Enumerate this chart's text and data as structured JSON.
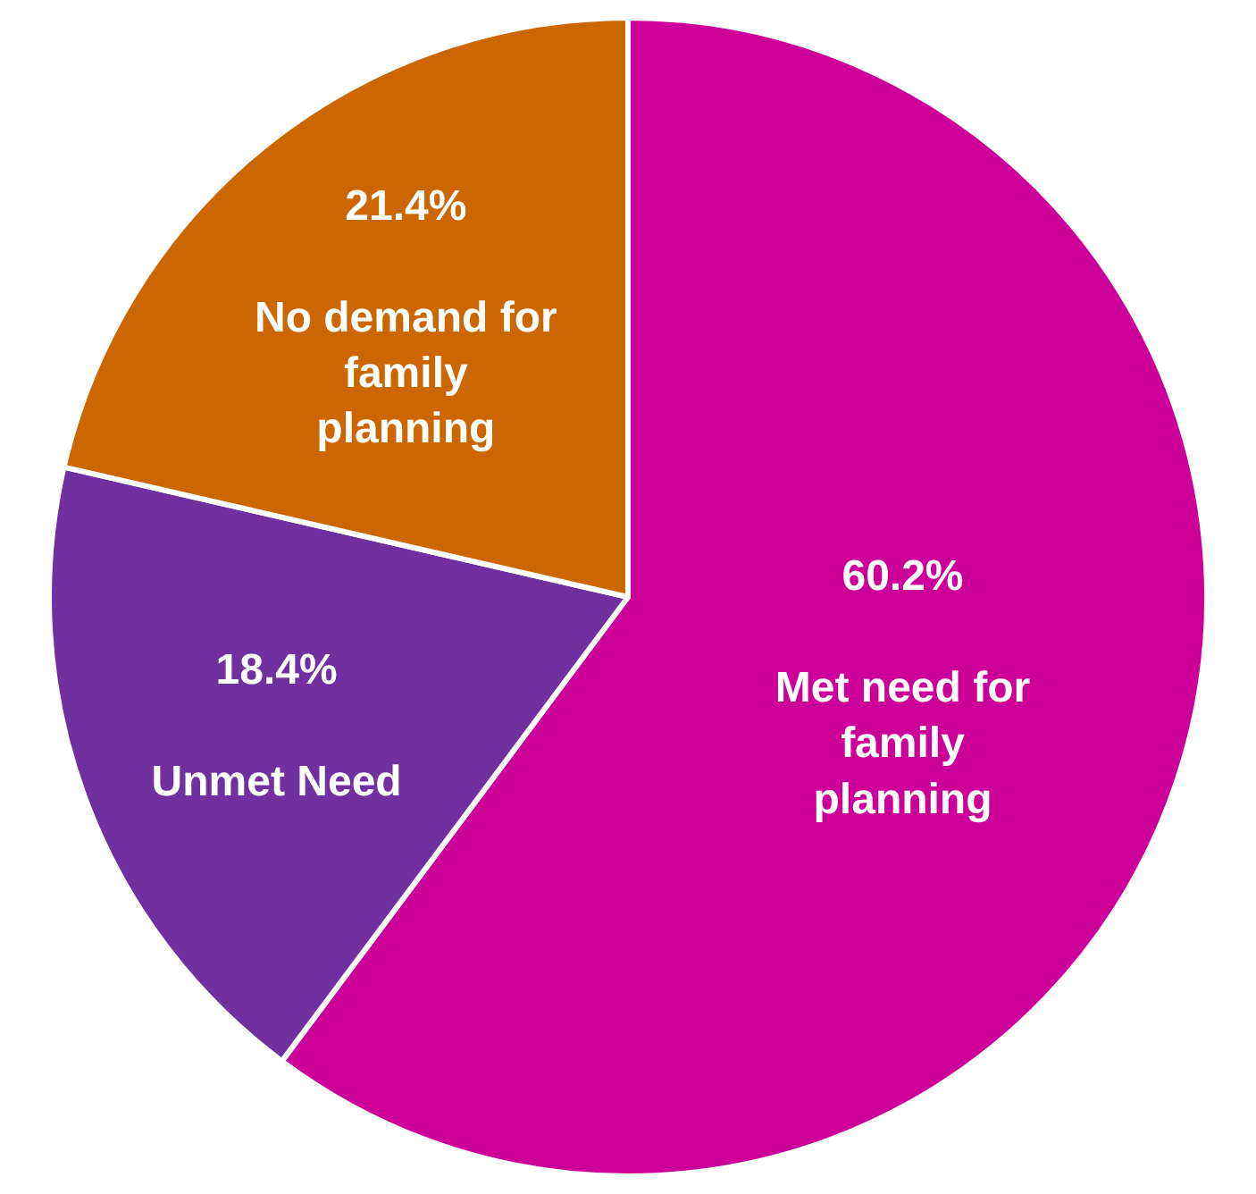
{
  "chart_data": {
    "type": "pie",
    "categories": [
      "Met need for family planning",
      "Unmet Need",
      "No demand for family planning"
    ],
    "values": [
      60.2,
      18.4,
      21.4
    ],
    "colors": [
      "#cc0099",
      "#7030a0",
      "#cc6600"
    ],
    "value_labels": [
      "60.2%",
      "18.4%",
      "21.4%"
    ],
    "legend": false
  }
}
